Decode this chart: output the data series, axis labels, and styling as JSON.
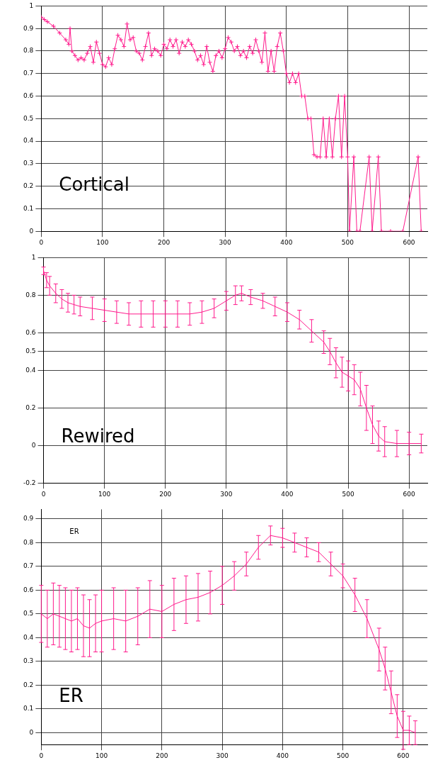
{
  "chart_data": [
    {
      "type": "line",
      "annotations": [
        "Cortical"
      ],
      "marker": "cross",
      "grid": true,
      "xlim": [
        0,
        630
      ],
      "xticks": [
        0,
        100,
        200,
        300,
        400,
        500,
        600
      ],
      "ylim": [
        0,
        1
      ],
      "yticks": [
        0,
        0.1,
        0.2,
        0.3,
        0.4,
        0.5,
        0.6,
        0.7,
        0.8,
        0.9,
        1
      ],
      "x": [
        0,
        5,
        10,
        20,
        30,
        40,
        45,
        47,
        50,
        55,
        60,
        65,
        70,
        75,
        80,
        85,
        90,
        95,
        100,
        105,
        110,
        115,
        120,
        125,
        130,
        135,
        140,
        145,
        150,
        155,
        160,
        165,
        170,
        175,
        180,
        185,
        190,
        195,
        200,
        205,
        210,
        215,
        220,
        225,
        230,
        235,
        240,
        245,
        250,
        255,
        260,
        265,
        270,
        275,
        280,
        285,
        290,
        295,
        300,
        305,
        310,
        315,
        320,
        325,
        330,
        335,
        340,
        345,
        350,
        355,
        360,
        365,
        370,
        375,
        380,
        385,
        390,
        395,
        400,
        405,
        410,
        415,
        420,
        425,
        430,
        435,
        440,
        445,
        450,
        455,
        460,
        465,
        470,
        475,
        480,
        485,
        490,
        495,
        500,
        503,
        510,
        515,
        520,
        535,
        540,
        550,
        555,
        570,
        590,
        615,
        620
      ],
      "series": [
        {
          "color": "#ff1a8c",
          "values": [
            0.95,
            0.94,
            0.93,
            0.91,
            0.88,
            0.85,
            0.83,
            0.9,
            0.8,
            0.78,
            0.76,
            0.77,
            0.76,
            0.79,
            0.82,
            0.75,
            0.84,
            0.79,
            0.74,
            0.73,
            0.77,
            0.74,
            0.81,
            0.87,
            0.85,
            0.82,
            0.92,
            0.85,
            0.86,
            0.8,
            0.79,
            0.76,
            0.82,
            0.88,
            0.78,
            0.81,
            0.8,
            0.78,
            0.83,
            0.81,
            0.85,
            0.82,
            0.85,
            0.79,
            0.84,
            0.82,
            0.85,
            0.83,
            0.8,
            0.76,
            0.78,
            0.74,
            0.82,
            0.75,
            0.71,
            0.78,
            0.8,
            0.77,
            0.81,
            0.86,
            0.84,
            0.8,
            0.82,
            0.78,
            0.8,
            0.77,
            0.82,
            0.79,
            0.85,
            0.8,
            0.75,
            0.88,
            0.71,
            0.8,
            0.71,
            0.82,
            0.88,
            0.8,
            0.7,
            0.66,
            0.7,
            0.66,
            0.7,
            0.6,
            0.6,
            0.5,
            0.5,
            0.34,
            0.33,
            0.33,
            0.5,
            0.33,
            0.5,
            0.33,
            0.5,
            0.6,
            0.33,
            0.6,
            0.33,
            0,
            0.33,
            0,
            0,
            0.33,
            0,
            0.33,
            0,
            0,
            0,
            0.33,
            0
          ]
        }
      ]
    },
    {
      "type": "line",
      "annotations": [
        "Rewired"
      ],
      "marker": "none",
      "grid": true,
      "xlim": [
        0,
        630
      ],
      "xticks": [
        0,
        100,
        200,
        300,
        400,
        500,
        600
      ],
      "ylim": [
        -0.2,
        1
      ],
      "yticks": [
        -0.2,
        0,
        0.2,
        0.4,
        0.5,
        0.6,
        0.8,
        1
      ],
      "x": [
        0,
        5,
        10,
        20,
        30,
        40,
        50,
        60,
        80,
        100,
        120,
        140,
        160,
        180,
        200,
        220,
        240,
        260,
        280,
        300,
        315,
        325,
        340,
        360,
        380,
        400,
        420,
        440,
        460,
        470,
        480,
        490,
        500,
        510,
        520,
        530,
        540,
        550,
        560,
        580,
        600,
        620
      ],
      "series": [
        {
          "color": "#ff1a8c",
          "values": [
            0.93,
            0.88,
            0.85,
            0.81,
            0.78,
            0.76,
            0.75,
            0.74,
            0.73,
            0.72,
            0.71,
            0.7,
            0.7,
            0.7,
            0.7,
            0.7,
            0.7,
            0.71,
            0.73,
            0.77,
            0.8,
            0.81,
            0.79,
            0.77,
            0.74,
            0.71,
            0.67,
            0.61,
            0.55,
            0.5,
            0.44,
            0.39,
            0.37,
            0.35,
            0.3,
            0.2,
            0.11,
            0.05,
            0.02,
            0.01,
            0.01,
            0.01
          ],
          "errors": [
            0.02,
            0.04,
            0.05,
            0.05,
            0.05,
            0.05,
            0.05,
            0.05,
            0.06,
            0.06,
            0.06,
            0.06,
            0.07,
            0.07,
            0.07,
            0.07,
            0.06,
            0.06,
            0.05,
            0.05,
            0.05,
            0.04,
            0.04,
            0.04,
            0.05,
            0.05,
            0.05,
            0.06,
            0.06,
            0.07,
            0.08,
            0.08,
            0.08,
            0.08,
            0.09,
            0.12,
            0.1,
            0.08,
            0.08,
            0.07,
            0.06,
            0.05
          ]
        }
      ]
    },
    {
      "type": "line",
      "annotations": [
        "ER",
        "ER"
      ],
      "marker": "none",
      "grid": true,
      "xlim": [
        0,
        640
      ],
      "xticks": [
        0,
        100,
        200,
        300,
        400,
        500,
        600
      ],
      "ylim": [
        -0.05,
        0.94
      ],
      "yticks": [
        0,
        0.1,
        0.2,
        0.3,
        0.4,
        0.5,
        0.6,
        0.7,
        0.8,
        0.9
      ],
      "x": [
        0,
        10,
        20,
        30,
        40,
        50,
        60,
        70,
        80,
        90,
        100,
        120,
        140,
        160,
        180,
        200,
        220,
        240,
        260,
        280,
        300,
        320,
        340,
        360,
        380,
        400,
        420,
        440,
        460,
        480,
        500,
        520,
        540,
        560,
        570,
        580,
        590,
        600,
        610,
        620
      ],
      "series": [
        {
          "color": "#ff1a8c",
          "values": [
            0.5,
            0.48,
            0.5,
            0.49,
            0.48,
            0.47,
            0.48,
            0.45,
            0.44,
            0.46,
            0.47,
            0.48,
            0.47,
            0.49,
            0.52,
            0.51,
            0.54,
            0.56,
            0.57,
            0.59,
            0.62,
            0.66,
            0.71,
            0.78,
            0.83,
            0.82,
            0.8,
            0.78,
            0.76,
            0.71,
            0.66,
            0.58,
            0.48,
            0.35,
            0.27,
            0.17,
            0.07,
            0.01,
            0.01,
            0
          ],
          "errors": [
            0.12,
            0.12,
            0.13,
            0.13,
            0.13,
            0.13,
            0.13,
            0.13,
            0.12,
            0.12,
            0.13,
            0.13,
            0.13,
            0.12,
            0.12,
            0.11,
            0.11,
            0.1,
            0.1,
            0.09,
            0.08,
            0.06,
            0.05,
            0.05,
            0.04,
            0.04,
            0.04,
            0.04,
            0.04,
            0.05,
            0.05,
            0.07,
            0.08,
            0.09,
            0.09,
            0.09,
            0.09,
            0.08,
            0.06,
            0.05
          ]
        }
      ]
    }
  ]
}
